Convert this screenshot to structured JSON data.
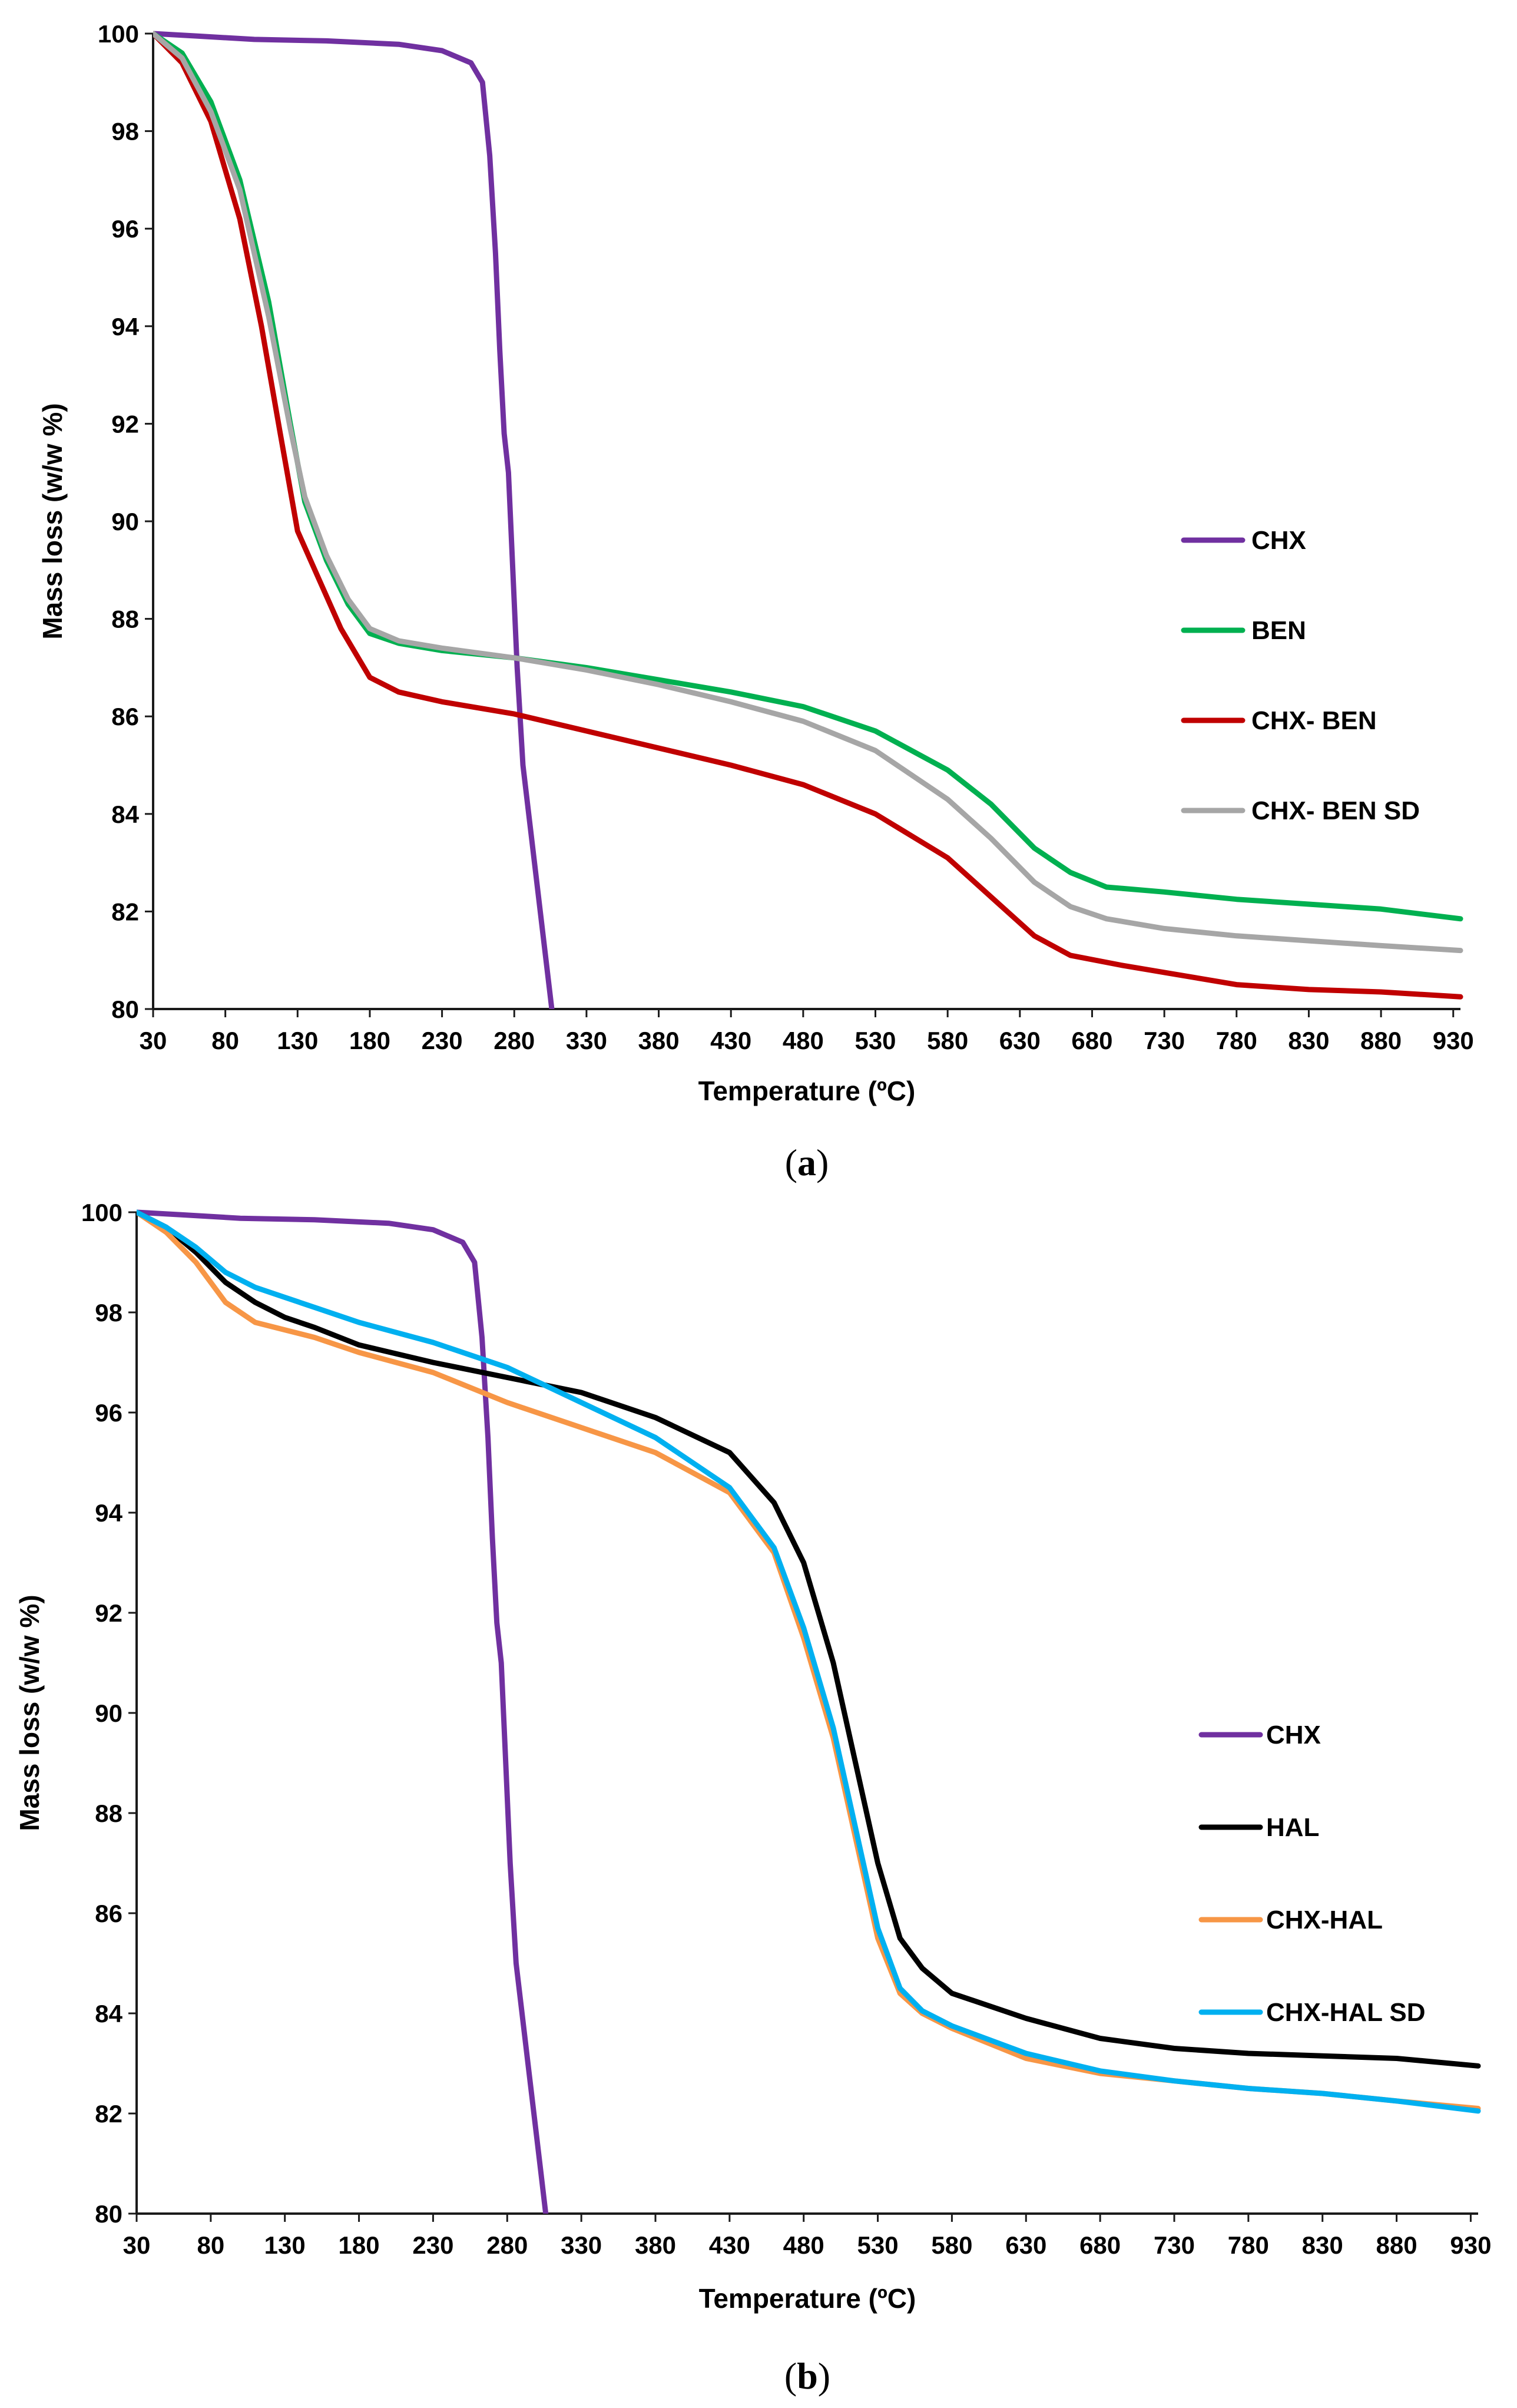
{
  "chart_data": [
    {
      "type": "line",
      "panel_label": "a",
      "xlabel": "Temperature (ºC)",
      "ylabel": "Mass loss (w/w %)",
      "xlim": [
        30,
        935
      ],
      "ylim": [
        80,
        100
      ],
      "x_ticks": [
        30,
        80,
        130,
        180,
        230,
        280,
        330,
        380,
        430,
        480,
        530,
        580,
        630,
        680,
        730,
        780,
        830,
        880,
        930
      ],
      "y_ticks": [
        80,
        82,
        84,
        86,
        88,
        90,
        92,
        94,
        96,
        98,
        100
      ],
      "legend_position": "right",
      "series": [
        {
          "name": "CHX",
          "color": "#7030A0",
          "points": [
            [
              30,
              100
            ],
            [
              60,
              99.95
            ],
            [
              100,
              99.88
            ],
            [
              150,
              99.85
            ],
            [
              200,
              99.78
            ],
            [
              230,
              99.65
            ],
            [
              250,
              99.4
            ],
            [
              258,
              99.0
            ],
            [
              263,
              97.5
            ],
            [
              267,
              95.5
            ],
            [
              270,
              93.5
            ],
            [
              273,
              91.8
            ],
            [
              276,
              91.0
            ],
            [
              279,
              89.0
            ],
            [
              282,
              87.0
            ],
            [
              286,
              85.0
            ],
            [
              294,
              83.0
            ],
            [
              302,
              81.0
            ],
            [
              306,
              80.0
            ]
          ]
        },
        {
          "name": "BEN",
          "color": "#00B050",
          "points": [
            [
              30,
              100
            ],
            [
              50,
              99.6
            ],
            [
              70,
              98.6
            ],
            [
              90,
              97.0
            ],
            [
              110,
              94.5
            ],
            [
              125,
              92.0
            ],
            [
              135,
              90.4
            ],
            [
              150,
              89.2
            ],
            [
              165,
              88.3
            ],
            [
              180,
              87.7
            ],
            [
              200,
              87.5
            ],
            [
              230,
              87.35
            ],
            [
              280,
              87.2
            ],
            [
              330,
              87.0
            ],
            [
              380,
              86.75
            ],
            [
              430,
              86.5
            ],
            [
              480,
              86.2
            ],
            [
              530,
              85.7
            ],
            [
              580,
              84.9
            ],
            [
              610,
              84.2
            ],
            [
              640,
              83.3
            ],
            [
              665,
              82.8
            ],
            [
              690,
              82.5
            ],
            [
              730,
              82.4
            ],
            [
              780,
              82.25
            ],
            [
              830,
              82.15
            ],
            [
              880,
              82.05
            ],
            [
              935,
              81.85
            ]
          ]
        },
        {
          "name": "CHX- BEN",
          "color": "#C00000",
          "points": [
            [
              30,
              100
            ],
            [
              50,
              99.4
            ],
            [
              70,
              98.2
            ],
            [
              90,
              96.2
            ],
            [
              105,
              94.0
            ],
            [
              118,
              91.8
            ],
            [
              130,
              89.8
            ],
            [
              145,
              88.8
            ],
            [
              160,
              87.8
            ],
            [
              180,
              86.8
            ],
            [
              200,
              86.5
            ],
            [
              230,
              86.3
            ],
            [
              280,
              86.05
            ],
            [
              330,
              85.7
            ],
            [
              380,
              85.35
            ],
            [
              430,
              85.0
            ],
            [
              480,
              84.6
            ],
            [
              530,
              84.0
            ],
            [
              580,
              83.1
            ],
            [
              610,
              82.3
            ],
            [
              640,
              81.5
            ],
            [
              665,
              81.1
            ],
            [
              700,
              80.9
            ],
            [
              730,
              80.75
            ],
            [
              780,
              80.5
            ],
            [
              830,
              80.4
            ],
            [
              880,
              80.35
            ],
            [
              935,
              80.25
            ]
          ]
        },
        {
          "name": "CHX- BEN SD",
          "color": "#A6A6A6",
          "points": [
            [
              30,
              100
            ],
            [
              50,
              99.5
            ],
            [
              70,
              98.4
            ],
            [
              90,
              96.8
            ],
            [
              110,
              94.2
            ],
            [
              125,
              91.9
            ],
            [
              135,
              90.5
            ],
            [
              150,
              89.3
            ],
            [
              165,
              88.4
            ],
            [
              180,
              87.8
            ],
            [
              200,
              87.55
            ],
            [
              230,
              87.4
            ],
            [
              280,
              87.2
            ],
            [
              330,
              86.95
            ],
            [
              380,
              86.65
            ],
            [
              430,
              86.3
            ],
            [
              480,
              85.9
            ],
            [
              530,
              85.3
            ],
            [
              580,
              84.3
            ],
            [
              610,
              83.5
            ],
            [
              640,
              82.6
            ],
            [
              665,
              82.1
            ],
            [
              690,
              81.85
            ],
            [
              730,
              81.65
            ],
            [
              780,
              81.5
            ],
            [
              830,
              81.4
            ],
            [
              880,
              81.3
            ],
            [
              935,
              81.2
            ]
          ]
        }
      ]
    },
    {
      "type": "line",
      "panel_label": "b",
      "xlabel": "Temperature (ºC)",
      "ylabel": "Mass loss (w/w %)",
      "xlim": [
        30,
        935
      ],
      "ylim": [
        80,
        100
      ],
      "x_ticks": [
        30,
        80,
        130,
        180,
        230,
        280,
        330,
        380,
        430,
        480,
        530,
        580,
        630,
        680,
        730,
        780,
        830,
        880,
        930
      ],
      "y_ticks": [
        80,
        82,
        84,
        86,
        88,
        90,
        92,
        94,
        96,
        98,
        100
      ],
      "legend_position": "right",
      "series": [
        {
          "name": "CHX",
          "color": "#7030A0",
          "points": [
            [
              30,
              100
            ],
            [
              60,
              99.95
            ],
            [
              100,
              99.88
            ],
            [
              150,
              99.85
            ],
            [
              200,
              99.78
            ],
            [
              230,
              99.65
            ],
            [
              250,
              99.4
            ],
            [
              258,
              99.0
            ],
            [
              263,
              97.5
            ],
            [
              267,
              95.5
            ],
            [
              270,
              93.5
            ],
            [
              273,
              91.8
            ],
            [
              276,
              91.0
            ],
            [
              279,
              89.0
            ],
            [
              282,
              87.0
            ],
            [
              286,
              85.0
            ],
            [
              294,
              83.0
            ],
            [
              302,
              81.0
            ],
            [
              306,
              80.0
            ]
          ]
        },
        {
          "name": "HAL",
          "color": "#000000",
          "points": [
            [
              30,
              100
            ],
            [
              50,
              99.7
            ],
            [
              70,
              99.2
            ],
            [
              90,
              98.6
            ],
            [
              110,
              98.2
            ],
            [
              130,
              97.9
            ],
            [
              150,
              97.7
            ],
            [
              180,
              97.35
            ],
            [
              230,
              97.0
            ],
            [
              280,
              96.7
            ],
            [
              330,
              96.4
            ],
            [
              380,
              95.9
            ],
            [
              430,
              95.2
            ],
            [
              460,
              94.2
            ],
            [
              480,
              93.0
            ],
            [
              500,
              91.0
            ],
            [
              515,
              89.0
            ],
            [
              530,
              87.0
            ],
            [
              545,
              85.5
            ],
            [
              560,
              84.9
            ],
            [
              580,
              84.4
            ],
            [
              630,
              83.9
            ],
            [
              680,
              83.5
            ],
            [
              730,
              83.3
            ],
            [
              780,
              83.2
            ],
            [
              830,
              83.15
            ],
            [
              880,
              83.1
            ],
            [
              935,
              82.95
            ]
          ]
        },
        {
          "name": "CHX-HAL",
          "color": "#F79646",
          "points": [
            [
              30,
              100
            ],
            [
              50,
              99.6
            ],
            [
              70,
              99.0
            ],
            [
              90,
              98.2
            ],
            [
              110,
              97.8
            ],
            [
              130,
              97.65
            ],
            [
              150,
              97.5
            ],
            [
              180,
              97.2
            ],
            [
              230,
              96.8
            ],
            [
              280,
              96.2
            ],
            [
              330,
              95.7
            ],
            [
              380,
              95.2
            ],
            [
              430,
              94.4
            ],
            [
              460,
              93.2
            ],
            [
              480,
              91.5
            ],
            [
              500,
              89.5
            ],
            [
              515,
              87.5
            ],
            [
              530,
              85.5
            ],
            [
              545,
              84.4
            ],
            [
              560,
              84.0
            ],
            [
              580,
              83.7
            ],
            [
              630,
              83.1
            ],
            [
              680,
              82.8
            ],
            [
              730,
              82.65
            ],
            [
              780,
              82.5
            ],
            [
              830,
              82.4
            ],
            [
              880,
              82.25
            ],
            [
              935,
              82.1
            ]
          ]
        },
        {
          "name": "CHX-HAL SD",
          "color": "#00B0F0",
          "points": [
            [
              30,
              100
            ],
            [
              50,
              99.7
            ],
            [
              70,
              99.3
            ],
            [
              90,
              98.8
            ],
            [
              110,
              98.5
            ],
            [
              130,
              98.3
            ],
            [
              150,
              98.1
            ],
            [
              180,
              97.8
            ],
            [
              230,
              97.4
            ],
            [
              280,
              96.9
            ],
            [
              330,
              96.2
            ],
            [
              380,
              95.5
            ],
            [
              430,
              94.5
            ],
            [
              460,
              93.3
            ],
            [
              480,
              91.7
            ],
            [
              500,
              89.7
            ],
            [
              515,
              87.7
            ],
            [
              530,
              85.7
            ],
            [
              545,
              84.5
            ],
            [
              560,
              84.05
            ],
            [
              580,
              83.75
            ],
            [
              630,
              83.2
            ],
            [
              680,
              82.85
            ],
            [
              730,
              82.65
            ],
            [
              780,
              82.5
            ],
            [
              830,
              82.4
            ],
            [
              880,
              82.25
            ],
            [
              935,
              82.05
            ]
          ]
        }
      ]
    }
  ]
}
